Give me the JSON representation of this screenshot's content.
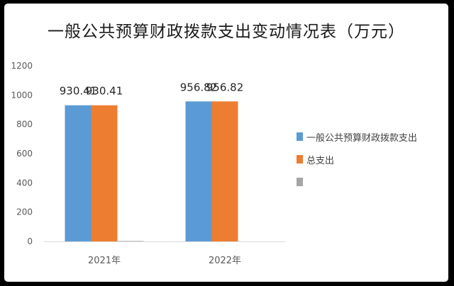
{
  "chart_data": {
    "type": "bar",
    "title": "一般公共预算财政拨款支出变动情况表（万元）",
    "categories": [
      "2021年",
      "2022年"
    ],
    "series": [
      {
        "name": "一般公共预算财政拨款支出",
        "values": [
          930.41,
          956.82
        ],
        "labels": [
          "930.41",
          "956.82"
        ],
        "color": "#5b9bd5"
      },
      {
        "name": "总支出",
        "values": [
          930.41,
          956.82
        ],
        "labels": [
          "930.41",
          "956.82"
        ],
        "color": "#ed7d31"
      },
      {
        "name": "",
        "values": [
          3,
          0
        ],
        "labels": [
          "",
          ""
        ],
        "color": "#a5a5a5"
      }
    ],
    "yticks": [
      "0",
      "200",
      "400",
      "600",
      "800",
      "1000",
      "1200"
    ],
    "ylim": [
      0,
      1200
    ],
    "grid": false,
    "legend_position": "right"
  }
}
